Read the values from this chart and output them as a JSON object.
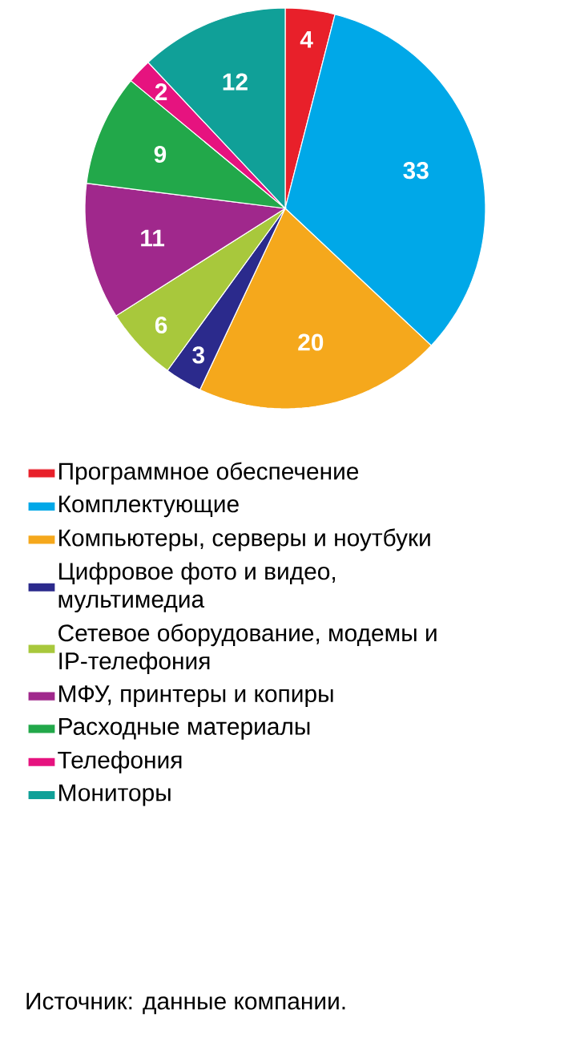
{
  "chart_data": {
    "type": "pie",
    "categories": [
      "Программное обеспечение",
      "Комплектующие",
      "Компьютеры, серверы и ноутбуки",
      "Цифровое фото и видео, мультимедиа",
      "Сетевое оборудование, модемы и IP-телефония",
      "МФУ, принтеры и копиры",
      "Расходные материалы",
      "Телефония",
      "Мониторы"
    ],
    "values": [
      4,
      33,
      20,
      3,
      6,
      11,
      9,
      2,
      12
    ],
    "colors": [
      "#e8202a",
      "#00a8e8",
      "#f5a81c",
      "#2b2a8c",
      "#a8c83c",
      "#a0288c",
      "#22a84a",
      "#e6137f",
      "#10a098"
    ],
    "data_labels": true,
    "legend": "bottom",
    "annotations": [
      "Источник: данные компании."
    ]
  }
}
